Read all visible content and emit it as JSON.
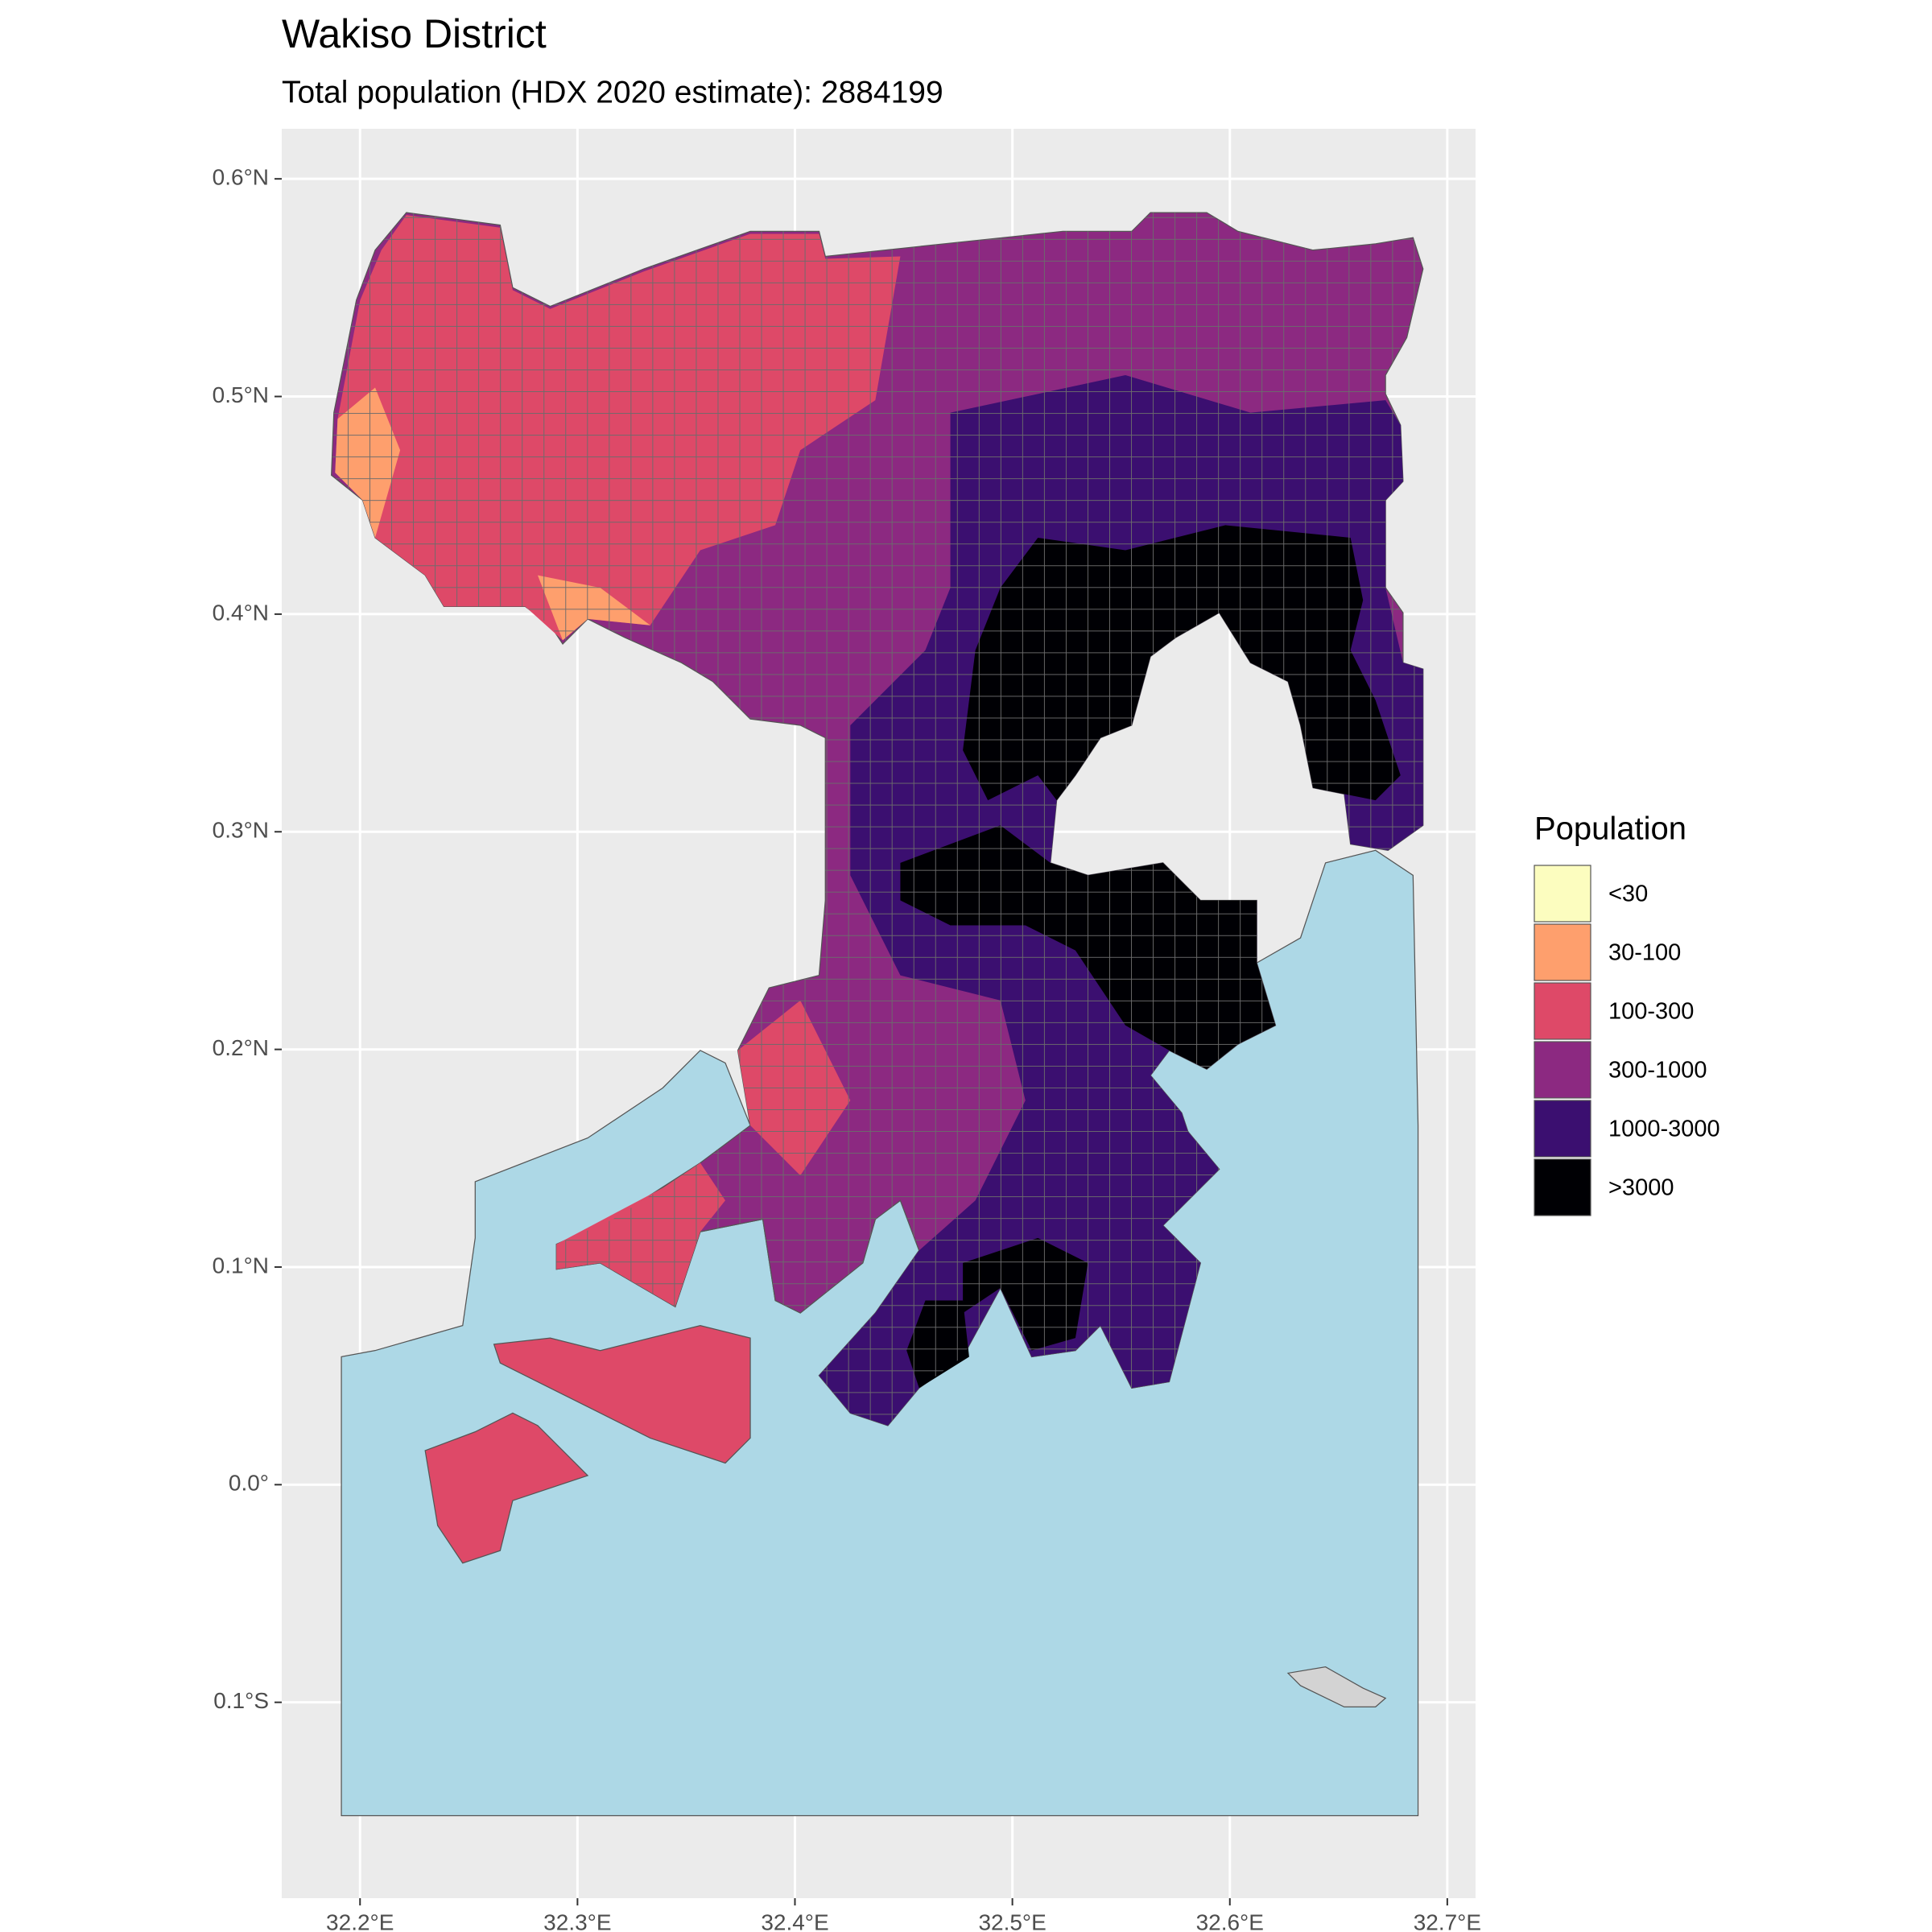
{
  "chart_data": {
    "type": "map",
    "title": "Wakiso District",
    "subtitle": "Total population (HDX 2020 estimate): 2884199",
    "xlim": [
      32.164,
      32.713
    ],
    "ylim": [
      -0.19,
      0.623
    ],
    "xticks": [
      {
        "value": 32.2,
        "label": "32.2°E"
      },
      {
        "value": 32.3,
        "label": "32.3°E"
      },
      {
        "value": 32.4,
        "label": "32.4°E"
      },
      {
        "value": 32.5,
        "label": "32.5°E"
      },
      {
        "value": 32.6,
        "label": "32.6°E"
      },
      {
        "value": 32.7,
        "label": "32.7°E"
      }
    ],
    "yticks": [
      {
        "value": -0.1,
        "label": "0.1°S"
      },
      {
        "value": 0.0,
        "label": "0.0°"
      },
      {
        "value": 0.1,
        "label": "0.1°N"
      },
      {
        "value": 0.2,
        "label": "0.2°N"
      },
      {
        "value": 0.3,
        "label": "0.3°N"
      },
      {
        "value": 0.4,
        "label": "0.4°N"
      },
      {
        "value": 0.5,
        "label": "0.5°N"
      },
      {
        "value": 0.6,
        "label": "0.6°N"
      }
    ],
    "grid": true,
    "legend": {
      "title": "Population",
      "position": "right",
      "items": [
        {
          "label": "<30",
          "color": "#fcfdbf"
        },
        {
          "label": "30-100",
          "color": "#fe9f6d"
        },
        {
          "label": "100-300",
          "color": "#de4968"
        },
        {
          "label": "300-1000",
          "color": "#8c2981"
        },
        {
          "label": "1000-3000",
          "color": "#3b0f70"
        },
        {
          "label": ">3000",
          "color": "#000004"
        }
      ]
    }
  }
}
